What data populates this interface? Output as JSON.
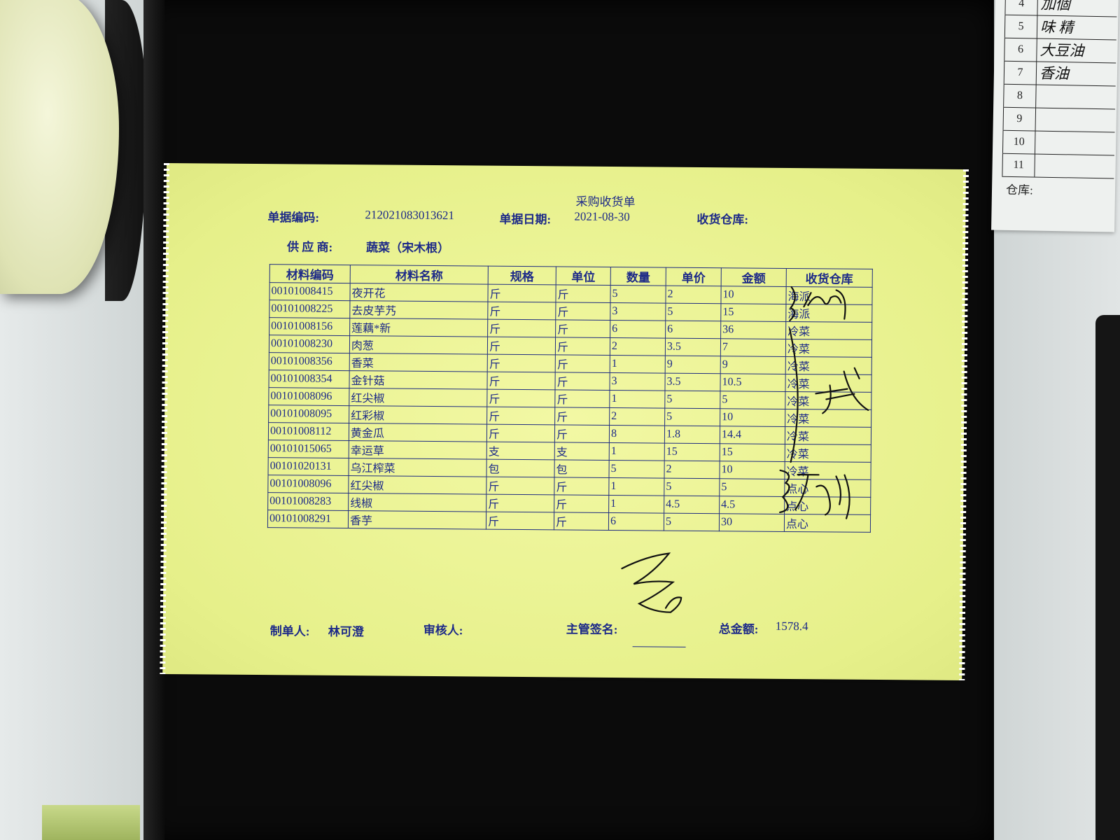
{
  "document": {
    "title": "采购收货单",
    "doc_no_label": "单据编码:",
    "doc_no": "212021083013621",
    "date_label": "单据日期:",
    "date": "2021-08-30",
    "warehouse_label": "收货仓库:",
    "supplier_label": "供 应 商:",
    "supplier": "蔬菜（宋木根）",
    "table": {
      "headers": [
        "材料编码",
        "材料名称",
        "规格",
        "单位",
        "数量",
        "单价",
        "金额",
        "收货仓库"
      ],
      "rows": [
        [
          "00101008415",
          "夜开花",
          "斤",
          "斤",
          "5",
          "2",
          "10",
          "海派"
        ],
        [
          "00101008225",
          "去皮芋艿",
          "斤",
          "斤",
          "3",
          "5",
          "15",
          "海派"
        ],
        [
          "00101008156",
          "莲藕*新",
          "斤",
          "斤",
          "6",
          "6",
          "36",
          "冷菜"
        ],
        [
          "00101008230",
          "肉葱",
          "斤",
          "斤",
          "2",
          "3.5",
          "7",
          "冷菜"
        ],
        [
          "00101008356",
          "香菜",
          "斤",
          "斤",
          "1",
          "9",
          "9",
          "冷菜"
        ],
        [
          "00101008354",
          "金针菇",
          "斤",
          "斤",
          "3",
          "3.5",
          "10.5",
          "冷菜"
        ],
        [
          "00101008096",
          "红尖椒",
          "斤",
          "斤",
          "1",
          "5",
          "5",
          "冷菜"
        ],
        [
          "00101008095",
          "红彩椒",
          "斤",
          "斤",
          "2",
          "5",
          "10",
          "冷菜"
        ],
        [
          "00101008112",
          "黄金瓜",
          "斤",
          "斤",
          "8",
          "1.8",
          "14.4",
          "冷菜"
        ],
        [
          "00101015065",
          "幸运草",
          "支",
          "支",
          "1",
          "15",
          "15",
          "冷菜"
        ],
        [
          "00101020131",
          "乌江榨菜",
          "包",
          "包",
          "5",
          "2",
          "10",
          "冷菜"
        ],
        [
          "00101008096",
          "红尖椒",
          "斤",
          "斤",
          "1",
          "5",
          "5",
          "点心"
        ],
        [
          "00101008283",
          "线椒",
          "斤",
          "斤",
          "1",
          "4.5",
          "4.5",
          "点心"
        ],
        [
          "00101008291",
          "香芋",
          "斤",
          "斤",
          "6",
          "5",
          "30",
          "点心"
        ]
      ]
    },
    "footer": {
      "maker_label": "制单人:",
      "maker": "林可澄",
      "reviewer_label": "审核人:",
      "supervisor_label": "主管签名:",
      "total_label": "总金额:",
      "total": "1578.4"
    }
  },
  "side_sheet": {
    "rows": [
      {
        "num": "4",
        "hand": "加個"
      },
      {
        "num": "5",
        "hand": "味 精"
      },
      {
        "num": "6",
        "hand": "大豆油"
      },
      {
        "num": "7",
        "hand": "香油"
      },
      {
        "num": "8",
        "hand": ""
      },
      {
        "num": "9",
        "hand": ""
      },
      {
        "num": "10",
        "hand": ""
      },
      {
        "num": "11",
        "hand": ""
      }
    ],
    "warehouse_label": "仓库:"
  },
  "colors": {
    "paper": "#e9f290",
    "ink": "#1d2a88",
    "tray": "#0b0b0b"
  }
}
